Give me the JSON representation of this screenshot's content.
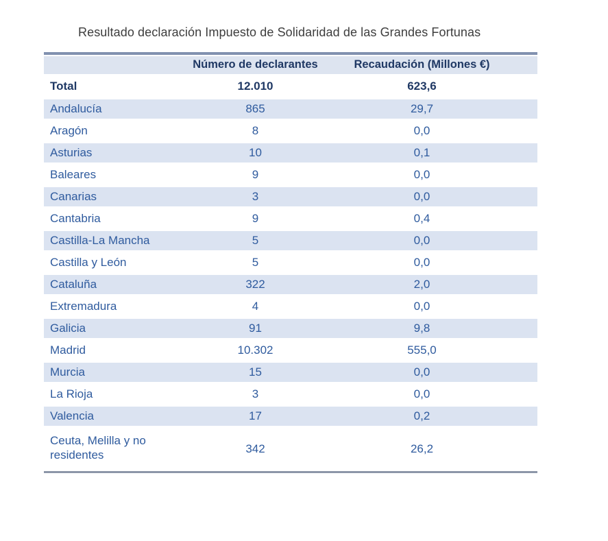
{
  "title": "Resultado declaración Impuesto de Solidaridad de las Grandes Fortunas",
  "table": {
    "headers": {
      "region": "",
      "declarantes": "Número de declarantes",
      "recaudacion": "Recaudación (Millones €)"
    },
    "total": {
      "label": "Total",
      "declarantes": "12.010",
      "recaudacion": "623,6"
    },
    "rows": [
      {
        "label": "Andalucía",
        "declarantes": "865",
        "recaudacion": "29,7"
      },
      {
        "label": "Aragón",
        "declarantes": "8",
        "recaudacion": "0,0"
      },
      {
        "label": "Asturias",
        "declarantes": "10",
        "recaudacion": "0,1"
      },
      {
        "label": "Baleares",
        "declarantes": "9",
        "recaudacion": "0,0"
      },
      {
        "label": "Canarias",
        "declarantes": "3",
        "recaudacion": "0,0"
      },
      {
        "label": "Cantabria",
        "declarantes": "9",
        "recaudacion": "0,4"
      },
      {
        "label": "Castilla-La Mancha",
        "declarantes": "5",
        "recaudacion": "0,0"
      },
      {
        "label": "Castilla y León",
        "declarantes": "5",
        "recaudacion": "0,0"
      },
      {
        "label": "Cataluña",
        "declarantes": "322",
        "recaudacion": "2,0"
      },
      {
        "label": "Extremadura",
        "declarantes": "4",
        "recaudacion": "0,0"
      },
      {
        "label": "Galicia",
        "declarantes": "91",
        "recaudacion": "9,8"
      },
      {
        "label": "Madrid",
        "declarantes": "10.302",
        "recaudacion": "555,0"
      },
      {
        "label": "Murcia",
        "declarantes": "15",
        "recaudacion": "0,0"
      },
      {
        "label": "La Rioja",
        "declarantes": "3",
        "recaudacion": "0,0"
      },
      {
        "label": "Valencia",
        "declarantes": "17",
        "recaudacion": "0,2"
      },
      {
        "label": "Ceuta, Melilla y no residentes",
        "declarantes": "342",
        "recaudacion": "26,2"
      }
    ]
  },
  "colors": {
    "title_text": "#3d3d3d",
    "header_bg": "#dde4f0",
    "stripe_bg": "#dbe3f1",
    "header_text": "#1f3864",
    "row_text": "#2f5b9e",
    "border_top": "#8191af",
    "border_bottom": "#8c96a8"
  }
}
